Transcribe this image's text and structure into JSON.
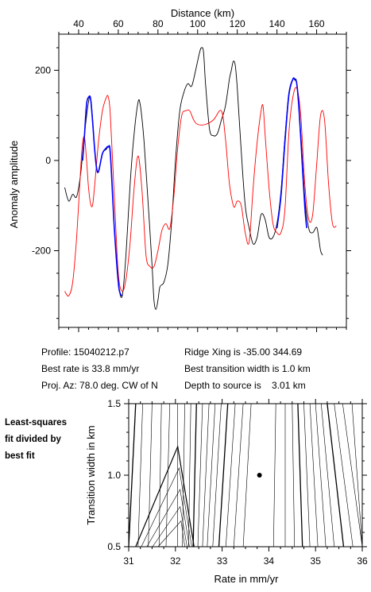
{
  "chart_data": [
    {
      "type": "line",
      "title": "",
      "xlabel": "Distance (km)",
      "ylabel": "Anomaly amplitude",
      "xlim": [
        30,
        175
      ],
      "ylim": [
        -370,
        280
      ],
      "x_ticks": [
        40,
        60,
        80,
        100,
        120,
        140,
        160
      ],
      "y_ticks": [
        200,
        0,
        -200
      ],
      "series": [
        {
          "color": "#000000",
          "x": [
            33,
            35,
            37,
            39,
            41,
            43,
            45,
            46,
            47,
            48,
            49,
            50,
            52,
            54,
            55,
            56,
            58,
            60,
            62,
            64,
            66,
            68,
            70,
            71,
            72,
            73,
            75,
            77,
            78,
            79,
            80,
            81,
            83,
            85,
            87,
            89,
            91,
            93,
            95,
            97,
            99,
            101,
            102,
            103,
            104,
            106,
            108,
            110,
            112,
            114,
            116,
            117,
            118,
            119,
            120,
            122,
            124,
            126,
            128,
            130,
            132,
            134,
            136,
            138,
            140,
            142,
            144,
            146,
            148,
            149,
            150,
            152,
            154,
            156,
            158,
            160,
            161,
            162,
            163
          ],
          "y": [
            -60,
            -90,
            -75,
            -80,
            -30,
            60,
            130,
            140,
            95,
            30,
            -15,
            -25,
            15,
            25,
            30,
            15,
            -150,
            -270,
            -300,
            -200,
            -50,
            60,
            130,
            125,
            90,
            40,
            -90,
            -230,
            -310,
            -330,
            -310,
            -280,
            -270,
            -230,
            -130,
            10,
            110,
            150,
            170,
            165,
            200,
            240,
            250,
            240,
            170,
            70,
            55,
            60,
            90,
            120,
            180,
            200,
            220,
            210,
            160,
            20,
            -100,
            -150,
            -185,
            -170,
            -120,
            -130,
            -170,
            -170,
            -140,
            -70,
            50,
            150,
            180,
            178,
            170,
            60,
            -80,
            -150,
            -160,
            -148,
            -170,
            -200,
            -210
          ]
        },
        {
          "color": "#ff0000",
          "x": [
            33,
            35,
            37,
            39,
            41,
            42,
            43,
            44,
            45,
            46,
            47,
            48,
            50,
            52,
            54,
            55,
            56,
            58,
            60,
            62,
            64,
            66,
            68,
            70,
            72,
            74,
            76,
            78,
            80,
            82,
            84,
            86,
            88,
            90,
            92,
            94,
            96,
            98,
            100,
            104,
            108,
            112,
            114,
            116,
            118,
            119,
            120,
            122,
            124,
            126,
            128,
            130,
            132,
            133,
            134,
            136,
            138,
            140,
            142,
            144,
            146,
            148,
            150,
            152,
            154,
            156,
            158,
            160,
            162,
            164,
            166,
            168,
            170
          ],
          "y": [
            -290,
            -300,
            -270,
            -170,
            -20,
            40,
            50,
            0,
            -60,
            -95,
            -100,
            -60,
            40,
            110,
            140,
            140,
            100,
            -80,
            -250,
            -290,
            -260,
            -180,
            -60,
            10,
            -70,
            -210,
            -235,
            -235,
            -200,
            -155,
            -140,
            -150,
            -80,
            30,
            100,
            110,
            110,
            90,
            80,
            80,
            90,
            110,
            50,
            -50,
            -100,
            -100,
            -90,
            -100,
            -160,
            -180,
            -60,
            40,
            110,
            120,
            60,
            -60,
            -140,
            -160,
            -160,
            -110,
            60,
            140,
            160,
            100,
            -50,
            -130,
            -120,
            -10,
            100,
            90,
            -50,
            -140,
            -145
          ]
        },
        {
          "color": "#0000ff",
          "x": [
            42,
            43,
            44,
            45,
            46,
            47,
            48,
            49,
            50,
            52,
            54,
            55,
            56,
            58,
            60,
            61,
            62
          ],
          "y": [
            0,
            60,
            125,
            140,
            138,
            90,
            30,
            -15,
            -25,
            15,
            28,
            30,
            15,
            -150,
            -270,
            -295,
            -300
          ]
        },
        {
          "color": "#0000ff",
          "x": [
            140,
            142,
            144,
            146,
            148,
            149,
            150,
            151,
            152,
            154,
            155
          ],
          "y": [
            -150,
            -80,
            40,
            145,
            180,
            180,
            170,
            120,
            50,
            -100,
            -150
          ]
        }
      ]
    },
    {
      "type": "contour",
      "title": "",
      "xlabel": "Rate in mm/yr",
      "ylabel": "Transition width in km",
      "xlim": [
        31,
        36
      ],
      "ylim": [
        0.5,
        1.5
      ],
      "x_ticks": [
        31,
        32,
        33,
        34,
        35,
        36
      ],
      "y_ticks": [
        0.5,
        1.0,
        1.5
      ],
      "best_fit_point": {
        "x": 33.8,
        "y": 1.0
      },
      "contour_lines": [
        {
          "x_bottom": 31.0,
          "x_top": 31.15,
          "bold": true
        },
        {
          "x_bottom": 31.2,
          "x_top": 31.3,
          "bold": false
        },
        {
          "x_bottom": 31.42,
          "x_top": 31.5,
          "bold": false
        },
        {
          "x_bottom": 31.65,
          "x_top": 31.7,
          "bold": false
        },
        {
          "x_bottom": 31.8,
          "x_top": 31.88,
          "bold": false
        },
        {
          "x_bottom": 32.05,
          "x_top": 32.05,
          "bold": false
        },
        {
          "x_bottom": 32.15,
          "x_top": 32.2,
          "bold": false
        },
        {
          "x_bottom": 32.28,
          "x_top": 32.33,
          "bold": false
        },
        {
          "x_bottom": 32.38,
          "x_top": 32.45,
          "bold": true
        },
        {
          "x_bottom": 32.48,
          "x_top": 32.58,
          "bold": false
        },
        {
          "x_bottom": 32.58,
          "x_top": 32.72,
          "bold": false
        },
        {
          "x_bottom": 32.68,
          "x_top": 32.85,
          "bold": false
        },
        {
          "x_bottom": 32.8,
          "x_top": 32.98,
          "bold": false
        },
        {
          "x_bottom": 32.93,
          "x_top": 33.12,
          "bold": true
        },
        {
          "x_bottom": 33.08,
          "x_top": 33.28,
          "bold": false
        },
        {
          "x_bottom": 33.25,
          "x_top": 33.45,
          "bold": false
        },
        {
          "x_bottom": 33.45,
          "x_top": 33.62,
          "bold": false
        },
        {
          "x_bottom": 34.1,
          "x_top": 34.15,
          "bold": false
        },
        {
          "x_bottom": 34.35,
          "x_top": 34.35,
          "bold": false
        },
        {
          "x_bottom": 34.55,
          "x_top": 34.5,
          "bold": false
        },
        {
          "x_bottom": 34.72,
          "x_top": 34.62,
          "bold": true
        },
        {
          "x_bottom": 34.88,
          "x_top": 34.75,
          "bold": false
        },
        {
          "x_bottom": 35.05,
          "x_top": 34.88,
          "bold": false
        },
        {
          "x_bottom": 35.22,
          "x_top": 35.0,
          "bold": false
        },
        {
          "x_bottom": 35.4,
          "x_top": 35.12,
          "bold": false
        },
        {
          "x_bottom": 35.6,
          "x_top": 35.25,
          "bold": true
        },
        {
          "x_bottom": 35.8,
          "x_top": 35.4,
          "bold": false
        },
        {
          "x_bottom": 36.0,
          "x_top": 35.58,
          "bold": false
        },
        {
          "x_bottom": 36.0,
          "x_top": 35.78,
          "bold": false
        }
      ]
    }
  ],
  "info": {
    "profile": "Profile: 15040212.p7",
    "best_rate": "Best rate is 33.8 mm/yr",
    "proj_az": "Proj. Az: 78.0 deg. CW of N",
    "ridge_xing": "Ridge Xing is -35.00 344.69",
    "best_width": "Best transition width is 1.0 km",
    "depth": "Depth to source is    3.01 km"
  },
  "note": {
    "line1": "Least-squares",
    "line2": "fit divided by",
    "line3": "best fit"
  }
}
